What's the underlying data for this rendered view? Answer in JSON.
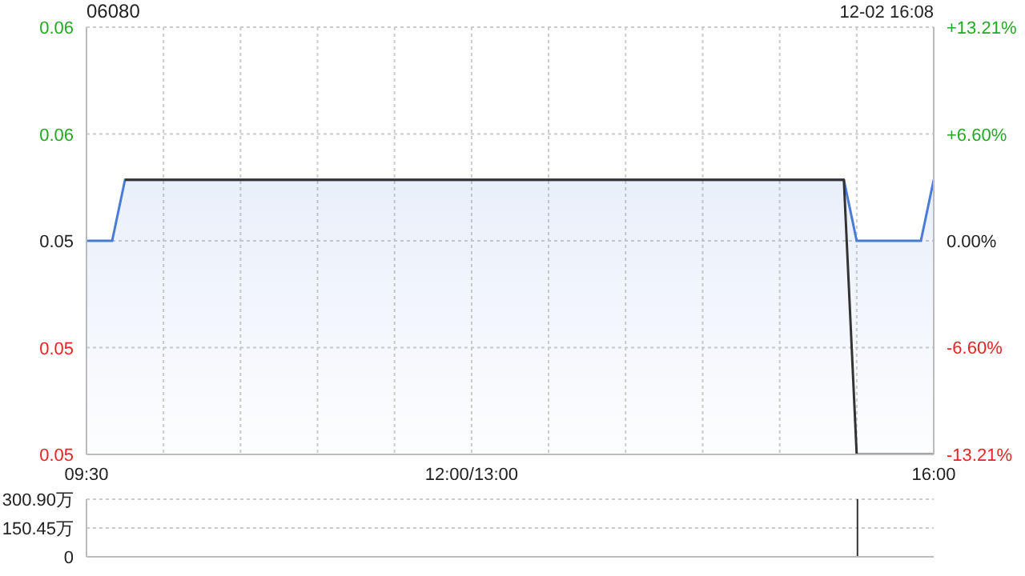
{
  "chart_data": [
    {
      "type": "area",
      "title": "06080",
      "annotations": [
        "12-02 16:08"
      ],
      "categories": [
        "09:30",
        null,
        null,
        null,
        null,
        null,
        null,
        null,
        null,
        null,
        null,
        null,
        null,
        null,
        null,
        null,
        null,
        null,
        null,
        null,
        null,
        null,
        null,
        null,
        null,
        null,
        null,
        null,
        null,
        null,
        "12:00/13:00",
        null,
        null,
        null,
        null,
        null,
        null,
        null,
        null,
        null,
        null,
        null,
        null,
        null,
        null,
        null,
        null,
        null,
        null,
        null,
        null,
        null,
        null,
        null,
        null,
        null,
        null,
        null,
        null,
        null,
        null,
        null,
        null,
        null,
        null,
        null,
        "16:00"
      ],
      "ylim": [
        0.046,
        0.06
      ],
      "yticks": [
        {
          "value": 0.046,
          "label": "0.05"
        },
        {
          "value": 0.0495,
          "label": "0.05"
        },
        {
          "value": 0.053,
          "label": "0.05"
        },
        {
          "value": 0.0565,
          "label": "0.06"
        },
        {
          "value": 0.06,
          "label": "0.06"
        }
      ],
      "y2lim": [
        -13.21,
        13.21
      ],
      "y2ticks": [
        {
          "value": -13.21,
          "label": "-13.21%"
        },
        {
          "value": -6.6,
          "label": "-6.60%"
        },
        {
          "value": 0,
          "label": "0.00%"
        },
        {
          "value": 6.6,
          "label": "+6.60%"
        },
        {
          "value": 13.21,
          "label": "+13.21%"
        }
      ],
      "grid": true,
      "marker": "none",
      "series": [
        {
          "color": "#4a7bd6",
          "values": [
            0.053,
            0.053,
            0.053,
            0.055,
            0.055,
            0.055,
            0.055,
            0.055,
            0.055,
            0.055,
            0.055,
            0.055,
            0.055,
            0.055,
            0.055,
            0.055,
            0.055,
            0.055,
            0.055,
            0.055,
            0.055,
            0.055,
            0.055,
            0.055,
            0.055,
            0.055,
            0.055,
            0.055,
            0.055,
            0.055,
            0.055,
            0.055,
            0.055,
            0.055,
            0.055,
            0.055,
            0.055,
            0.055,
            0.055,
            0.055,
            0.055,
            0.055,
            0.055,
            0.055,
            0.055,
            0.055,
            0.055,
            0.055,
            0.055,
            0.055,
            0.055,
            0.055,
            0.055,
            0.055,
            0.055,
            0.055,
            0.055,
            0.055,
            0.055,
            0.055,
            0.053,
            0.053,
            0.053,
            0.053,
            0.053,
            0.053,
            0.055
          ]
        },
        {
          "type": "line",
          "color": "#333333",
          "values": [
            null,
            null,
            null,
            0.055,
            0.055,
            0.055,
            0.055,
            0.055,
            0.055,
            0.055,
            0.055,
            0.055,
            0.055,
            0.055,
            0.055,
            0.055,
            0.055,
            0.055,
            0.055,
            0.055,
            0.055,
            0.055,
            0.055,
            0.055,
            0.055,
            0.055,
            0.055,
            0.055,
            0.055,
            0.055,
            0.055,
            0.055,
            0.055,
            0.055,
            0.055,
            0.055,
            0.055,
            0.055,
            0.055,
            0.055,
            0.055,
            0.055,
            0.055,
            0.055,
            0.055,
            0.055,
            0.055,
            0.055,
            0.055,
            0.055,
            0.055,
            0.055,
            0.055,
            0.055,
            0.055,
            0.055,
            0.055,
            0.055,
            0.055,
            0.055,
            0.046,
            0.046,
            0.046,
            0.046,
            0.046,
            0.046,
            0.046
          ]
        }
      ]
    },
    {
      "type": "bar",
      "categories": [
        null,
        null,
        null,
        null,
        null,
        null,
        null,
        null,
        null,
        null,
        null,
        null,
        null,
        null,
        null,
        null,
        null,
        null,
        null,
        null,
        null,
        null,
        null,
        null,
        null,
        null,
        null,
        null,
        null,
        null,
        null,
        null,
        null,
        null,
        null,
        null,
        null,
        null,
        null,
        null,
        null,
        null,
        null,
        null,
        null,
        null,
        null,
        null,
        null,
        null,
        null,
        null,
        null,
        null,
        null,
        null,
        null,
        null,
        null,
        null,
        null,
        null,
        null,
        null,
        null,
        null,
        null
      ],
      "ylim": [
        0,
        300.9
      ],
      "yticks": [
        0,
        {
          "value": 150.45,
          "label": "150.45万"
        },
        {
          "value": 300.9,
          "label": "300.90万"
        }
      ],
      "tick_labels": "y",
      "grid": "y",
      "series": [
        {
          "color": "#333333",
          "values": [
            null,
            null,
            null,
            null,
            null,
            null,
            null,
            null,
            null,
            null,
            null,
            null,
            null,
            null,
            null,
            null,
            null,
            null,
            null,
            null,
            null,
            null,
            null,
            null,
            null,
            null,
            null,
            null,
            null,
            null,
            null,
            null,
            null,
            null,
            null,
            null,
            null,
            null,
            null,
            null,
            null,
            null,
            null,
            null,
            null,
            null,
            null,
            null,
            null,
            null,
            null,
            null,
            null,
            null,
            null,
            null,
            null,
            null,
            null,
            null,
            300.9,
            null,
            null,
            null,
            null,
            null,
            null
          ]
        }
      ]
    }
  ]
}
